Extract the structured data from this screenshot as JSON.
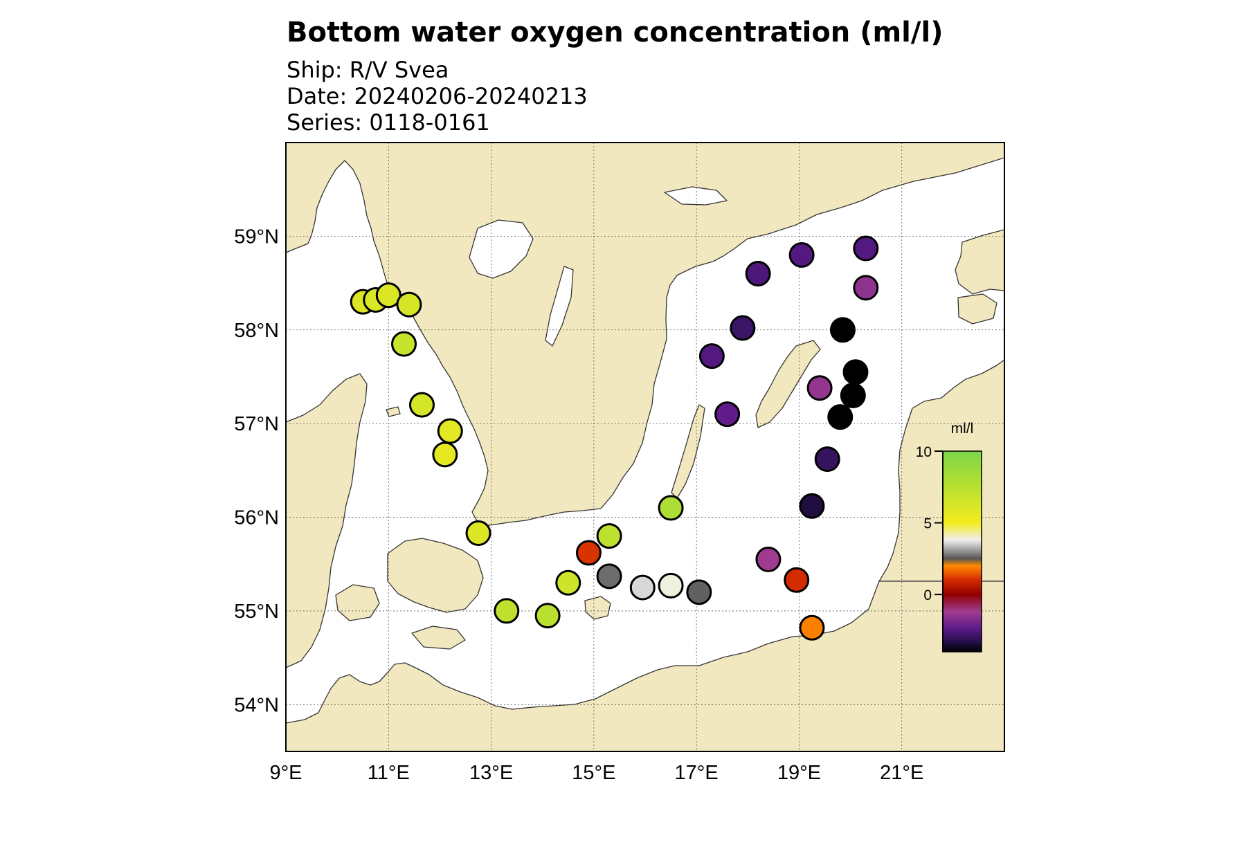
{
  "header": {
    "title": "Bottom water oxygen concentration (ml/l)",
    "ship": "Ship: R/V Svea",
    "date": "Date: 20240206-20240213",
    "series": "Series: 0118-0161"
  },
  "map": {
    "lon_range": [
      9,
      23
    ],
    "lat_range": [
      53.5,
      60.0
    ],
    "lon_ticks": [
      {
        "value": 9,
        "label": "9°E"
      },
      {
        "value": 11,
        "label": "11°E"
      },
      {
        "value": 13,
        "label": "13°E"
      },
      {
        "value": 15,
        "label": "15°E"
      },
      {
        "value": 17,
        "label": "17°E"
      },
      {
        "value": 19,
        "label": "19°E"
      },
      {
        "value": 21,
        "label": "21°E"
      }
    ],
    "lat_ticks": [
      {
        "value": 54,
        "label": "54°N"
      },
      {
        "value": 55,
        "label": "55°N"
      },
      {
        "value": 56,
        "label": "56°N"
      },
      {
        "value": 57,
        "label": "57°N"
      },
      {
        "value": 58,
        "label": "58°N"
      },
      {
        "value": 59,
        "label": "59°N"
      }
    ],
    "grid": true,
    "colors": {
      "land": "#f2e8c0",
      "sea": "#ffffff",
      "coast": "#333333",
      "grid": "#555555"
    }
  },
  "colorbar": {
    "label": "ml/l",
    "range": [
      -4,
      10
    ],
    "ticks": [
      {
        "value": 10,
        "label": "10"
      },
      {
        "value": 5,
        "label": "5"
      },
      {
        "value": 0,
        "label": "0"
      }
    ],
    "stops": [
      {
        "value": 10,
        "color": "#7cd64a"
      },
      {
        "value": 7.5,
        "color": "#b8e030"
      },
      {
        "value": 5,
        "color": "#f2ec1e"
      },
      {
        "value": 3.8,
        "color": "#f0f0f0"
      },
      {
        "value": 2.5,
        "color": "#555555"
      },
      {
        "value": 2.0,
        "color": "#ff8a00"
      },
      {
        "value": 1.0,
        "color": "#d42a00"
      },
      {
        "value": 0,
        "color": "#900000"
      },
      {
        "value": -1.2,
        "color": "#a03c90"
      },
      {
        "value": -2.4,
        "color": "#5a1a88"
      },
      {
        "value": -3.3,
        "color": "#24104a"
      },
      {
        "value": -4,
        "color": "#000000"
      }
    ]
  },
  "stations": [
    {
      "lon": 10.5,
      "lat": 58.3,
      "value": 6.0
    },
    {
      "lon": 10.75,
      "lat": 58.32,
      "value": 6.1
    },
    {
      "lon": 11.0,
      "lat": 58.37,
      "value": 6.0
    },
    {
      "lon": 11.4,
      "lat": 58.27,
      "value": 6.2
    },
    {
      "lon": 11.3,
      "lat": 57.85,
      "value": 6.8
    },
    {
      "lon": 11.65,
      "lat": 57.2,
      "value": 6.3
    },
    {
      "lon": 12.2,
      "lat": 56.92,
      "value": 5.7
    },
    {
      "lon": 12.1,
      "lat": 56.67,
      "value": 5.6
    },
    {
      "lon": 12.75,
      "lat": 55.83,
      "value": 6.0
    },
    {
      "lon": 13.3,
      "lat": 55.0,
      "value": 7.2
    },
    {
      "lon": 14.1,
      "lat": 54.95,
      "value": 7.4
    },
    {
      "lon": 14.5,
      "lat": 55.3,
      "value": 6.6
    },
    {
      "lon": 14.9,
      "lat": 55.62,
      "value": 1.1
    },
    {
      "lon": 15.3,
      "lat": 55.8,
      "value": 7.3
    },
    {
      "lon": 15.3,
      "lat": 55.37,
      "value": 2.7
    },
    {
      "lon": 15.95,
      "lat": 55.25,
      "value": 3.6
    },
    {
      "lon": 16.5,
      "lat": 55.27,
      "value": 3.9
    },
    {
      "lon": 17.05,
      "lat": 55.2,
      "value": 2.6
    },
    {
      "lon": 16.5,
      "lat": 56.1,
      "value": 8.0
    },
    {
      "lon": 17.3,
      "lat": 57.72,
      "value": -2.5
    },
    {
      "lon": 17.6,
      "lat": 57.1,
      "value": -2.3
    },
    {
      "lon": 17.9,
      "lat": 58.02,
      "value": -2.9
    },
    {
      "lon": 18.2,
      "lat": 58.6,
      "value": -2.6
    },
    {
      "lon": 19.05,
      "lat": 58.8,
      "value": -2.5
    },
    {
      "lon": 20.3,
      "lat": 58.87,
      "value": -2.5
    },
    {
      "lon": 20.3,
      "lat": 58.45,
      "value": -1.5
    },
    {
      "lon": 19.85,
      "lat": 58.0,
      "value": -4.0
    },
    {
      "lon": 20.1,
      "lat": 57.55,
      "value": -4.0
    },
    {
      "lon": 19.4,
      "lat": 57.38,
      "value": -1.4
    },
    {
      "lon": 20.05,
      "lat": 57.3,
      "value": -4.0
    },
    {
      "lon": 19.8,
      "lat": 57.07,
      "value": -4.0
    },
    {
      "lon": 19.55,
      "lat": 56.62,
      "value": -3.0
    },
    {
      "lon": 19.25,
      "lat": 56.12,
      "value": -3.4
    },
    {
      "lon": 18.4,
      "lat": 55.55,
      "value": -1.2
    },
    {
      "lon": 18.95,
      "lat": 55.33,
      "value": 1.0
    },
    {
      "lon": 19.25,
      "lat": 54.82,
      "value": 1.9
    }
  ]
}
